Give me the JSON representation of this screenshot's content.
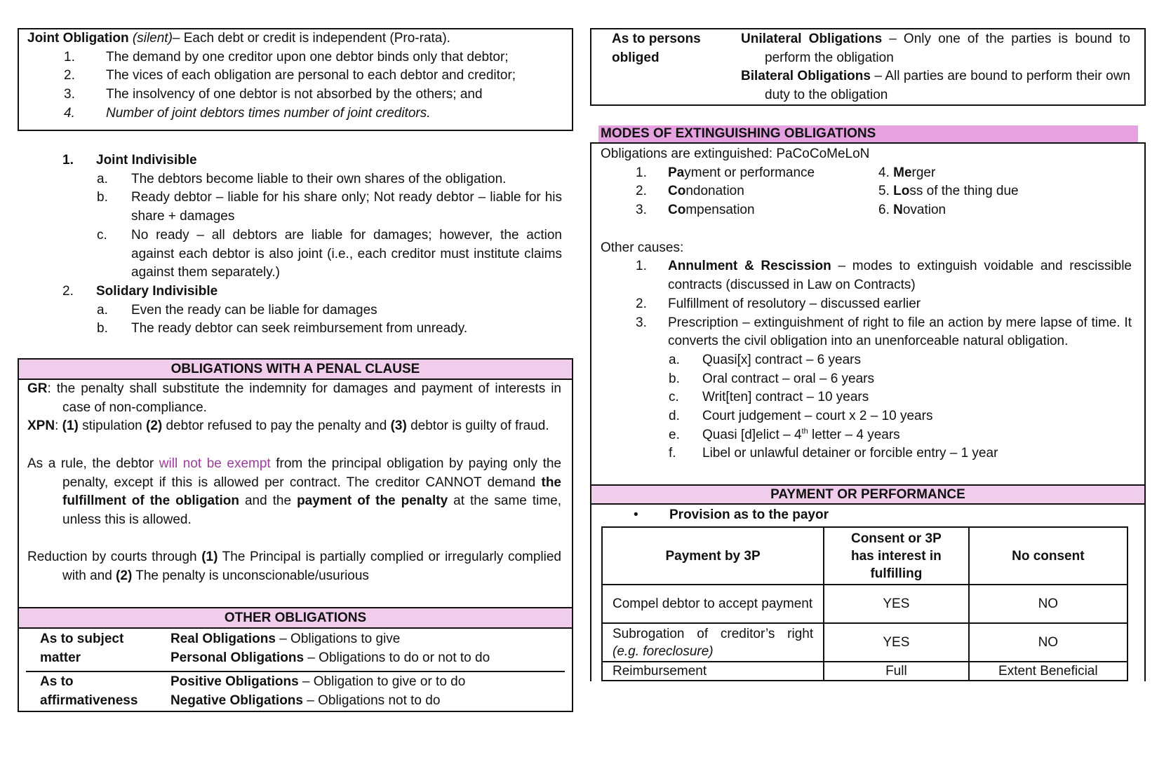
{
  "joint_obligation": {
    "title": "Joint Obligation",
    "title_note": "(silent)",
    "title_rest": "– Each debt or credit is independent (Pro-rata).",
    "items": [
      {
        "n": "1.",
        "t": "The demand by one creditor upon one debtor binds only that debtor;"
      },
      {
        "n": "2.",
        "t": "The vices of each obligation are personal to each debtor and creditor;"
      },
      {
        "n": "3.",
        "t": "The insolvency of one debtor is not absorbed by the others; and"
      },
      {
        "n": "4.",
        "t": "Number of joint debtors times number of joint creditors."
      }
    ]
  },
  "indivisible": {
    "joint": {
      "n": "1.",
      "title": "Joint Indivisible",
      "items": [
        {
          "n": "a.",
          "t": "The debtors become liable to their own shares of the obligation."
        },
        {
          "n": "b.",
          "t": "Ready debtor – liable for his share only; Not ready debtor – liable for his share + damages"
        },
        {
          "n": "c.",
          "t": "No ready – all debtors are liable for damages; however, the action against each debtor is also joint (i.e., each creditor must institute claims against them separately.)"
        }
      ]
    },
    "solidary": {
      "n": "2.",
      "title": "Solidary Indivisible",
      "items": [
        {
          "n": "a.",
          "t": "Even the ready can be liable for damages"
        },
        {
          "n": "b.",
          "t": "The ready debtor can seek reimbursement from unready."
        }
      ]
    }
  },
  "penal_clause": {
    "header": "OBLIGATIONS WITH A PENAL CLAUSE",
    "gr_label": "GR",
    "gr_text": ": the penalty shall substitute the indemnity for damages and payment of interests in case of non-compliance.",
    "xpn_label": "XPN",
    "xpn": [
      ": ",
      "(1)",
      " stipulation ",
      "(2)",
      " debtor refused to pay the penalty and ",
      "(3)",
      " debtor is guilty of fraud."
    ],
    "rule": [
      "As a rule, the debtor ",
      "will not be exempt",
      " from the principal obligation by paying only the penalty, except if this is allowed per contract. The creditor CANNOT demand ",
      "the fulfillment of the obligation",
      " and the ",
      "payment of the penalty",
      " at the same time, unless this is allowed."
    ],
    "reduction": [
      "Reduction by courts through ",
      "(1)",
      " The Principal is partially complied or irregularly complied with and ",
      "(2)",
      " The penalty is unconscionable/usurious"
    ]
  },
  "other_obligations": {
    "header": "OTHER OBLIGATIONS",
    "rows": [
      {
        "label": "As to subject matter",
        "a_b": "Real Obligations",
        "a_t": " – Obligations to give",
        "b_b": "Personal Obligations",
        "b_t": " – Obligations to do or not to do"
      },
      {
        "label": "As to affirmativeness",
        "a_b": "Positive Obligations",
        "a_t": " – Obligation to give or to do",
        "b_b": "Negative Obligations",
        "b_t": " – Obligations not to do"
      }
    ]
  },
  "persons_obliged": {
    "label": "As to persons obliged",
    "a_b": "Unilateral Obligations",
    "a_t": " – Only one of the parties is bound to perform the obligation",
    "b_b": "Bilateral Obligations",
    "b_t": " – All parties are bound to perform their own duty to the obligation"
  },
  "modes": {
    "header": "MODES OF EXTINGUISHING OBLIGATIONS",
    "intro": "Obligations are extinguished: PaCoCoMeLoN",
    "left": [
      {
        "n": "1.",
        "b": "Pa",
        "t": "yment or performance"
      },
      {
        "n": "2.",
        "b": "Co",
        "t": "ndonation"
      },
      {
        "n": "3.",
        "b": "Co",
        "t": "mpensation"
      }
    ],
    "right": [
      {
        "n": "4. ",
        "b": "Me",
        "t": "rger"
      },
      {
        "n": "5. ",
        "b": "Lo",
        "t": "ss of the thing due"
      },
      {
        "n": "6. ",
        "b": "N",
        "t": "ovation"
      }
    ],
    "other_label": "Other causes:",
    "other": [
      {
        "n": "1.",
        "b": "Annulment & Rescission",
        "t": " – modes to extinguish voidable and rescissible contracts (discussed in Law on Contracts)"
      },
      {
        "n": "2.",
        "b": "",
        "t": "Fulfillment of resolutory – discussed earlier"
      },
      {
        "n": "3.",
        "b": "",
        "t": "Prescription – extinguishment of right to file an action by mere lapse of time. It converts the civil obligation into an unenforceable natural obligation."
      }
    ],
    "prescription": [
      {
        "n": "a.",
        "t": "Quasi[x] contract – 6 years"
      },
      {
        "n": "b.",
        "t": "Oral contract – oral – 6 years"
      },
      {
        "n": "c.",
        "t": "Writ[ten] contract – 10 years"
      },
      {
        "n": "d.",
        "t": "Court judgement – court x 2 – 10 years"
      },
      {
        "n": "e.",
        "t": "Quasi [d]elict – 4",
        "sup": "th",
        "t2": " letter – 4 years"
      },
      {
        "n": "f.",
        "t": "Libel or unlawful detainer or forcible entry – 1 year"
      }
    ]
  },
  "payment": {
    "header": "PAYMENT OR PERFORMANCE",
    "bullet": "•",
    "provision": "Provision as to the payor",
    "table": {
      "headers": [
        "Payment by 3P",
        "Consent  or 3P has interest in fulfilling",
        "No consent"
      ],
      "rows": [
        {
          "c1": "Compel debtor to accept payment",
          "c1_i": "",
          "c2": "YES",
          "c3": "NO"
        },
        {
          "c1": "Subrogation of creditor’s right",
          "c1_i": "(e.g. foreclosure)",
          "c2": "YES",
          "c3": "NO"
        },
        {
          "c1": "Reimbursement",
          "c1_i": "",
          "c2": "Full",
          "c3": "Extent Beneficial"
        }
      ]
    }
  },
  "colors": {
    "header_light_pink": "#f1cdec",
    "header_pink": "#e6a2e0",
    "highlight_purple": "#9b3d9b"
  }
}
